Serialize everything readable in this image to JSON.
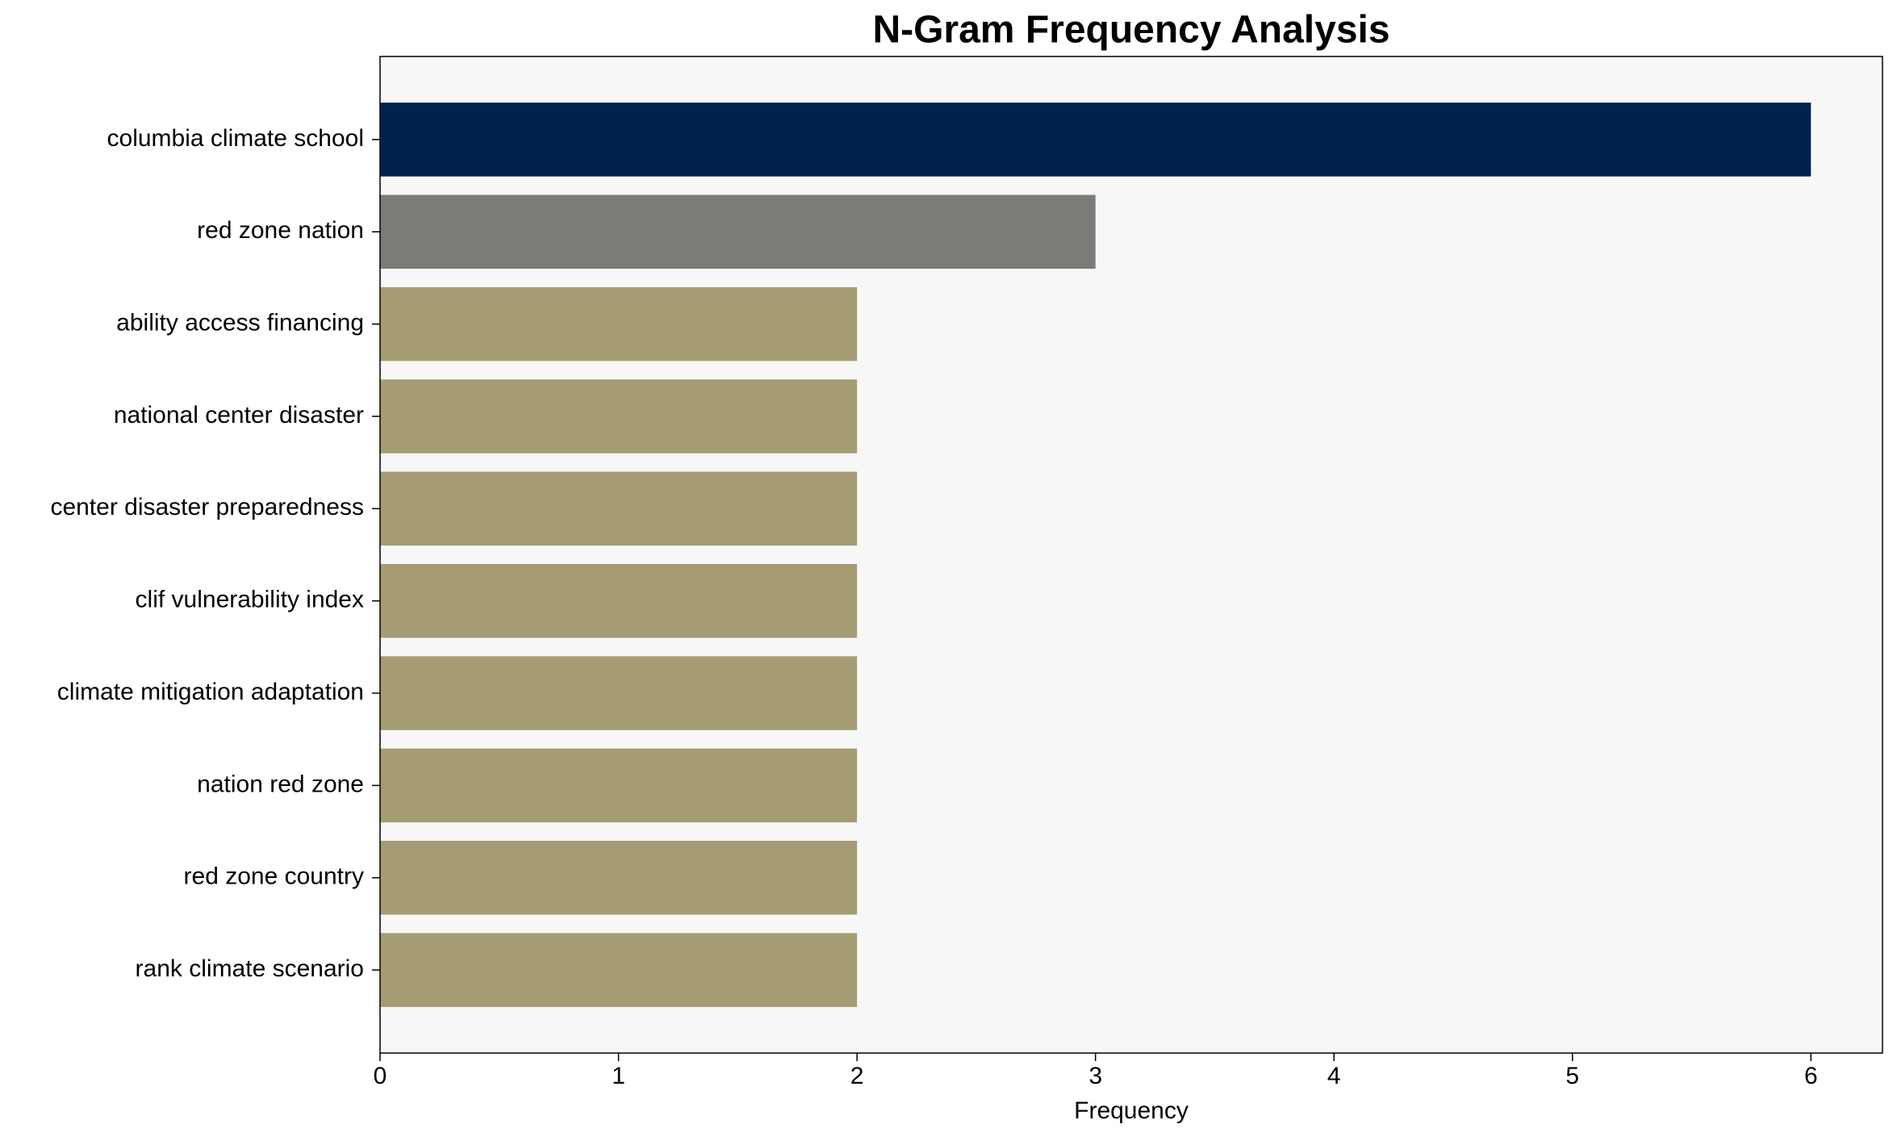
{
  "chart_data": {
    "type": "barh",
    "title": "N-Gram Frequency Analysis",
    "x_label": "Frequency",
    "categories": [
      "columbia climate school",
      "red zone nation",
      "ability access financing",
      "national center disaster",
      "center disaster preparedness",
      "clif vulnerability index",
      "climate mitigation adaptation",
      "nation red zone",
      "red zone country",
      "rank climate scenario"
    ],
    "values": [
      6,
      3,
      2,
      2,
      2,
      2,
      2,
      2,
      2,
      2
    ],
    "colors": [
      "#00224e",
      "#7c7b78",
      "#a59c74",
      "#a59c74",
      "#a59c74",
      "#a59c74",
      "#a59c74",
      "#a59c74",
      "#a59c74",
      "#a59c74"
    ],
    "xlim": [
      0,
      6.3
    ],
    "xticks": [
      0,
      1,
      2,
      3,
      4,
      5,
      6
    ],
    "grid": false
  }
}
